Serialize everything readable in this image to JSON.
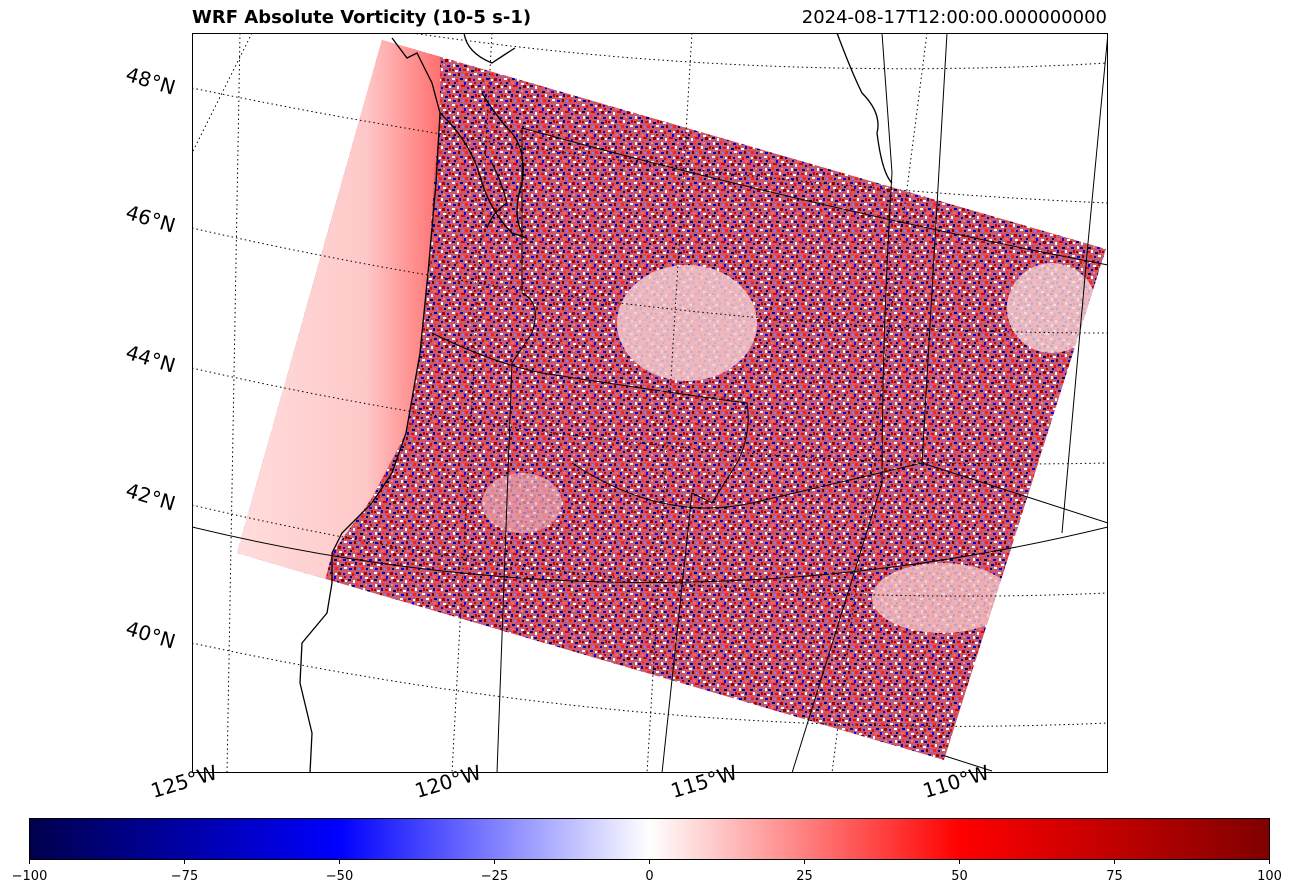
{
  "title": "WRF Absolute Vorticity (10-5 s-1)",
  "timestamp": "2024-08-17T12:00:00.000000000",
  "map": {
    "lat_labels": [
      "48°N",
      "46°N",
      "44°N",
      "42°N",
      "40°N"
    ],
    "lon_labels": [
      "125°W",
      "120°W",
      "115°W",
      "110°W"
    ],
    "features": [
      "coastlines",
      "state-borders",
      "graticule-dotted",
      "vorticity-field"
    ]
  },
  "colorbar": {
    "min": -100,
    "max": 100,
    "colormap": "seismic",
    "colors": {
      "low": "#00004d",
      "mid_low": "#0000ff",
      "center": "#ffffff",
      "mid_high": "#ff0000",
      "high": "#800000"
    },
    "ticks": [
      "−100",
      "−75",
      "−50",
      "−25",
      "0",
      "25",
      "50",
      "75",
      "100"
    ]
  }
}
